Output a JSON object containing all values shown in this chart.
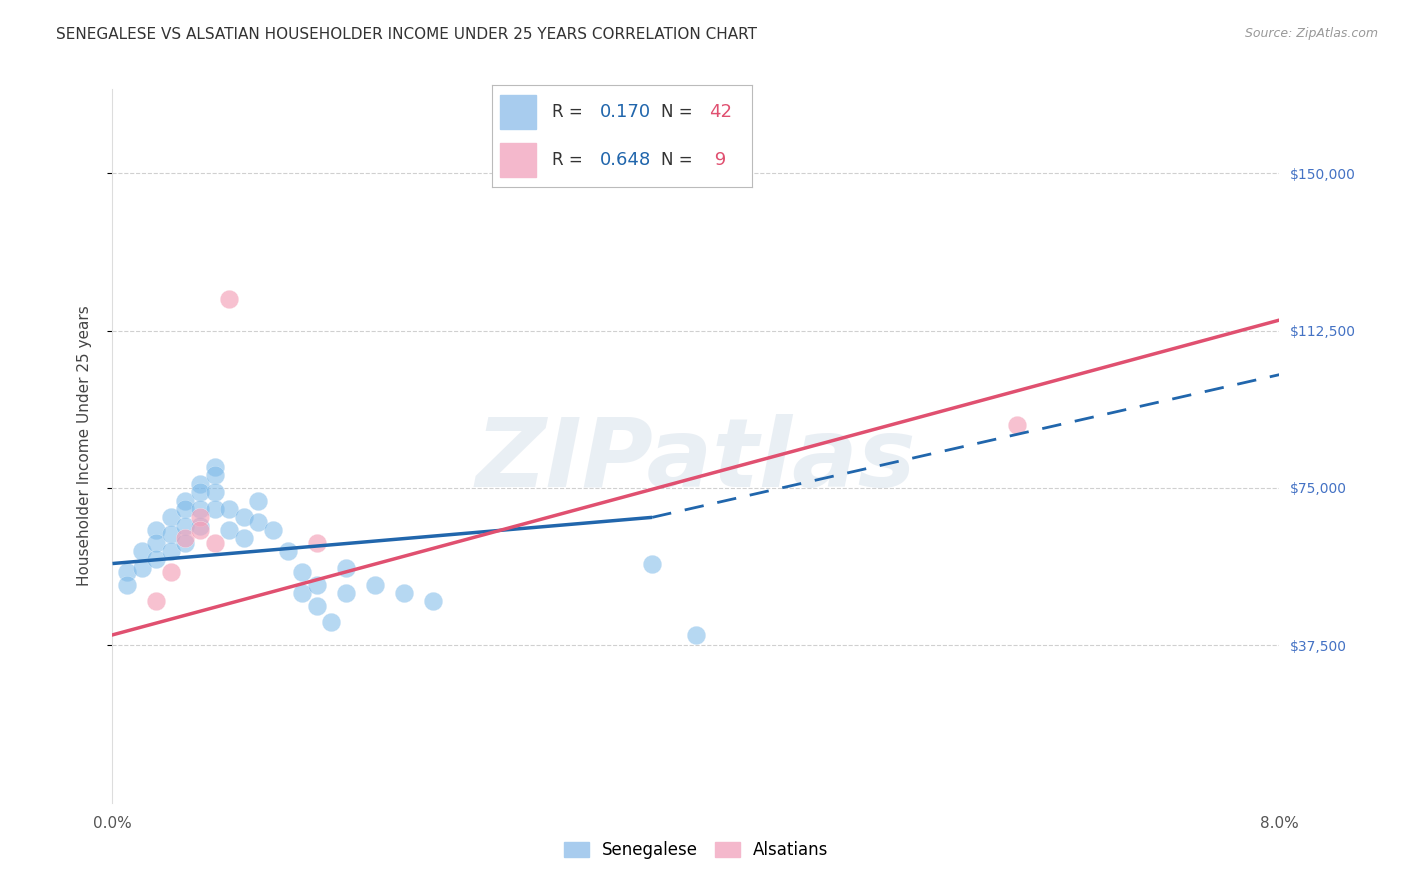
{
  "title": "SENEGALESE VS ALSATIAN HOUSEHOLDER INCOME UNDER 25 YEARS CORRELATION CHART",
  "source": "Source: ZipAtlas.com",
  "ylabel": "Householder Income Under 25 years",
  "xlim": [
    0.0,
    0.08
  ],
  "ylim": [
    0,
    170000
  ],
  "senegalese_color": "#7ab8e8",
  "alsatian_color": "#f4a0b8",
  "senegalese_x": [
    0.001,
    0.001,
    0.002,
    0.002,
    0.003,
    0.003,
    0.003,
    0.004,
    0.004,
    0.004,
    0.005,
    0.005,
    0.005,
    0.005,
    0.006,
    0.006,
    0.006,
    0.006,
    0.007,
    0.007,
    0.007,
    0.007,
    0.008,
    0.008,
    0.009,
    0.009,
    0.01,
    0.01,
    0.011,
    0.012,
    0.013,
    0.013,
    0.014,
    0.014,
    0.015,
    0.016,
    0.016,
    0.018,
    0.02,
    0.022,
    0.037,
    0.04
  ],
  "senegalese_y": [
    55000,
    52000,
    60000,
    56000,
    65000,
    62000,
    58000,
    68000,
    64000,
    60000,
    72000,
    70000,
    66000,
    62000,
    76000,
    74000,
    70000,
    66000,
    80000,
    78000,
    74000,
    70000,
    70000,
    65000,
    68000,
    63000,
    72000,
    67000,
    65000,
    60000,
    55000,
    50000,
    52000,
    47000,
    43000,
    56000,
    50000,
    52000,
    50000,
    48000,
    57000,
    40000
  ],
  "alsatian_x": [
    0.003,
    0.004,
    0.005,
    0.006,
    0.006,
    0.007,
    0.008,
    0.014,
    0.062
  ],
  "alsatian_y": [
    48000,
    55000,
    63000,
    68000,
    65000,
    62000,
    120000,
    62000,
    90000
  ],
  "senegalese_R": 0.17,
  "senegalese_N": 42,
  "alsatian_R": 0.648,
  "alsatian_N": 9,
  "blue_line_color": "#2166ac",
  "pink_line_color": "#e05070",
  "watermark": "ZIPatlas",
  "background_color": "#ffffff",
  "grid_color": "#d0d0d0",
  "ytick_values": [
    37500,
    75000,
    112500,
    150000
  ],
  "ytick_labels": [
    "$37,500",
    "$75,000",
    "$112,500",
    "$150,000"
  ],
  "sen_trend_x0": 0.0,
  "sen_trend_y0": 57000,
  "sen_trend_x1": 0.037,
  "sen_trend_y1": 68000,
  "sen_trend_x2": 0.08,
  "sen_trend_y2": 102000,
  "als_trend_x0": 0.0,
  "als_trend_y0": 40000,
  "als_trend_x1": 0.08,
  "als_trend_y1": 115000
}
